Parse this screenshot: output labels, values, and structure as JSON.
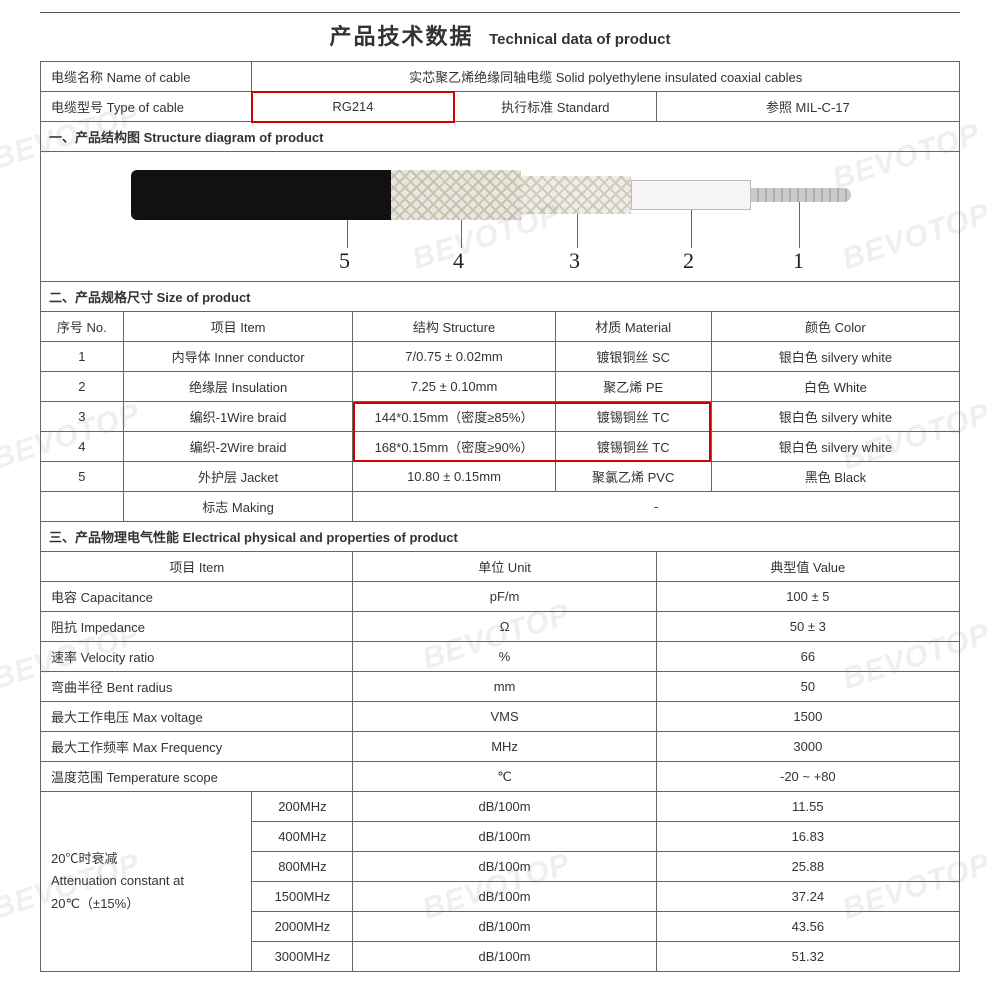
{
  "title": {
    "cn": "产品技术数据",
    "en": "Technical data of product"
  },
  "header": {
    "name_label": "电缆名称 Name of cable",
    "name_value": "实芯聚乙烯绝缘同轴电缆 Solid polyethylene insulated coaxial cables",
    "type_label": "电缆型号 Type of cable",
    "type_value": "RG214",
    "std_label": "执行标准 Standard",
    "std_value": "参照 MIL-C-17"
  },
  "section1": {
    "title": "一、产品结构图 Structure diagram of product"
  },
  "diagram": {
    "nums": [
      "5",
      "4",
      "3",
      "2",
      "1"
    ],
    "colors": {
      "jacket": "#111111",
      "braid": "#e9e6de",
      "insul": "#f5f5f5",
      "core": "#c9c9c9"
    }
  },
  "section2": {
    "title": "二、产品规格尺寸 Size of product",
    "cols": {
      "no": "序号 No.",
      "item": "项目 Item",
      "struct": "结构 Structure",
      "mat": "材质 Material",
      "color": "颜色 Color"
    },
    "rows": [
      {
        "no": "1",
        "item": "内导体 Inner conductor",
        "struct": "7/0.75 ± 0.02mm",
        "mat": "镀银铜丝 SC",
        "color": "银白色 silvery white"
      },
      {
        "no": "2",
        "item": "绝缘层 Insulation",
        "struct": "7.25 ± 0.10mm",
        "mat": "聚乙烯 PE",
        "color": "白色 White"
      },
      {
        "no": "3",
        "item": "编织-1Wire braid",
        "struct": "144*0.15mm（密度≥85%）",
        "mat": "镀锡铜丝 TC",
        "color": "银白色 silvery white",
        "red": true
      },
      {
        "no": "4",
        "item": "编织-2Wire braid",
        "struct": "168*0.15mm（密度≥90%）",
        "mat": "镀锡铜丝 TC",
        "color": "银白色 silvery white",
        "red": true
      },
      {
        "no": "5",
        "item": "外护层 Jacket",
        "struct": "10.80 ± 0.15mm",
        "mat": "聚氯乙烯 PVC",
        "color": "黑色 Black"
      },
      {
        "no": "",
        "item": "标志 Making",
        "struct": "",
        "mat": "-",
        "color": ""
      }
    ]
  },
  "section3": {
    "title": "三、产品物理电气性能 Electrical physical and properties of product",
    "cols": {
      "item": "项目 Item",
      "unit": "单位 Unit",
      "value": "典型值 Value"
    },
    "rows": [
      {
        "item": "电容 Capacitance",
        "unit": "pF/m",
        "value": "100 ± 5"
      },
      {
        "item": "阻抗 Impedance",
        "unit": "Ω",
        "value": "50 ± 3"
      },
      {
        "item": "速率 Velocity ratio",
        "unit": "%",
        "value": "66"
      },
      {
        "item": "弯曲半径  Bent radius",
        "unit": "mm",
        "value": "50"
      },
      {
        "item": "最大工作电压  Max voltage",
        "unit": "VMS",
        "value": "1500"
      },
      {
        "item": "最大工作频率  Max Frequency",
        "unit": "MHz",
        "value": "3000"
      },
      {
        "item": "温度范围  Temperature scope",
        "unit": "℃",
        "value": "-20 ~ +80"
      }
    ],
    "atten": {
      "label1": "20℃时衰减",
      "label2": "Attenuation constant at",
      "label3": "20℃（±15%）",
      "rows": [
        {
          "f": "200MHz",
          "u": "dB/100m",
          "v": "11.55"
        },
        {
          "f": "400MHz",
          "u": "dB/100m",
          "v": "16.83"
        },
        {
          "f": "800MHz",
          "u": "dB/100m",
          "v": "25.88"
        },
        {
          "f": "1500MHz",
          "u": "dB/100m",
          "v": "37.24"
        },
        {
          "f": "2000MHz",
          "u": "dB/100m",
          "v": "43.56"
        },
        {
          "f": "3000MHz",
          "u": "dB/100m",
          "v": "51.32"
        }
      ]
    }
  },
  "watermark": "BEVOTOP"
}
